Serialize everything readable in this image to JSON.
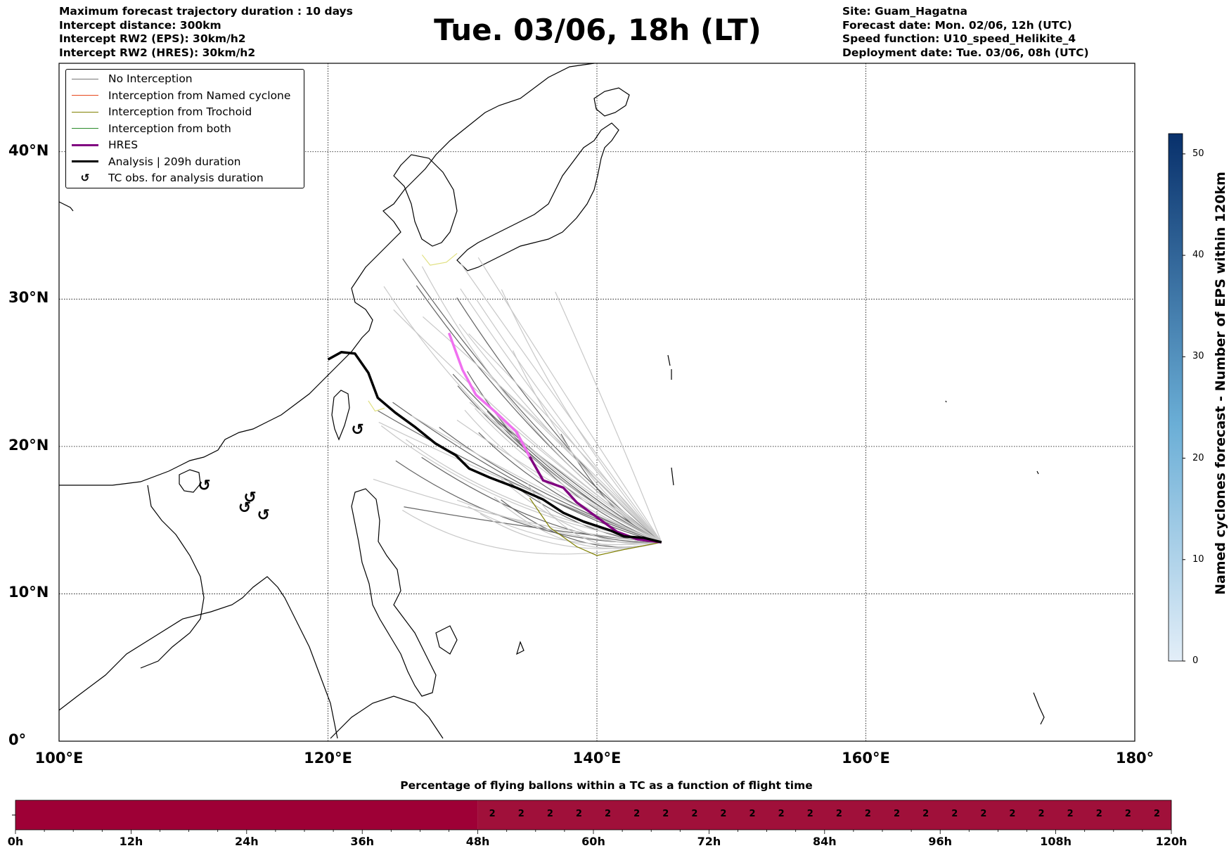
{
  "info_left": [
    "Maximum forecast trajectory duration : 10 days",
    "Intercept distance: 300km",
    "Intercept RW2 (EPS):  30km/h2",
    "Intercept RW2 (HRES): 30km/h2"
  ],
  "title": "Tue. 03/06, 18h (LT)",
  "info_right": [
    "Site: Guam_Hagatna",
    "Forecast date: Mon. 02/06, 12h (UTC)",
    "Speed function: U10_speed_Helikite_4",
    "Deployment date: Tue. 03/06, 08h (UTC)"
  ],
  "map": {
    "lon_ticks": [
      "100°E",
      "120°E",
      "140°E",
      "160°E",
      "180°"
    ],
    "lat_ticks": [
      "0°",
      "10°N",
      "20°N",
      "30°N",
      "40°N"
    ],
    "lon_range": [
      100,
      180
    ],
    "lat_range": [
      0,
      46
    ],
    "site": {
      "lon": 144.8,
      "lat": 13.5
    },
    "hres_track": [
      [
        129,
        27.7
      ],
      [
        130,
        25.2
      ],
      [
        131,
        23.5
      ],
      [
        132.5,
        22.3
      ],
      [
        134,
        21.0
      ],
      [
        135,
        19.3
      ],
      [
        136,
        17.7
      ],
      [
        137.5,
        17.2
      ],
      [
        138.5,
        16.2
      ],
      [
        140,
        15.2
      ],
      [
        141.5,
        14.2
      ],
      [
        143,
        13.7
      ],
      [
        144.8,
        13.5
      ]
    ],
    "analysis_track": [
      [
        120,
        25.9
      ],
      [
        121,
        26.4
      ],
      [
        122,
        26.3
      ],
      [
        123,
        25.0
      ],
      [
        123.7,
        23.3
      ],
      [
        125,
        22.3
      ],
      [
        126.5,
        21.3
      ],
      [
        128,
        20.2
      ],
      [
        129.5,
        19.4
      ],
      [
        130.5,
        18.5
      ],
      [
        132,
        17.9
      ],
      [
        134,
        17.2
      ],
      [
        136,
        16.4
      ],
      [
        137.5,
        15.5
      ],
      [
        139,
        14.9
      ],
      [
        141,
        14.3
      ],
      [
        142,
        13.9
      ],
      [
        143.5,
        13.8
      ],
      [
        144.8,
        13.5
      ]
    ],
    "tc_obs": [
      {
        "lon": 110.8,
        "lat": 17.0
      },
      {
        "lon": 114.2,
        "lat": 16.2
      },
      {
        "lon": 113.8,
        "lat": 15.5
      },
      {
        "lon": 115.2,
        "lat": 15.0
      },
      {
        "lon": 122.2,
        "lat": 20.8
      }
    ],
    "glyph_tc": "↺"
  },
  "legend": [
    {
      "label": "No Interception",
      "color": "#777777",
      "width": 1.2
    },
    {
      "label": "Interception from Named cyclone",
      "color": "#e8481c",
      "width": 1.2
    },
    {
      "label": "Interception from Trochoid",
      "color": "#808000",
      "width": 1.2
    },
    {
      "label": "Interception from both",
      "color": "#2a8a2a",
      "width": 1.2
    },
    {
      "label": "HRES",
      "color": "#800080",
      "width": 3.5
    },
    {
      "label": "Analysis | 209h duration",
      "color": "#000000",
      "width": 3.5
    },
    {
      "label": "TC obs. for analysis duration",
      "color": "#000000",
      "width": 0
    }
  ],
  "colorbar": {
    "label": "Named cyclones forecast - Number of EPS within 120km",
    "ticks": [
      "0",
      "10",
      "20",
      "30",
      "40",
      "50"
    ],
    "min": 0,
    "max": 52,
    "color_low": "#e3eef8",
    "color_high": "#08306b"
  },
  "timeline": {
    "title": "Percentage of flying ballons within a TC as a function of flight time",
    "ticks": [
      "0h",
      "12h",
      "24h",
      "36h",
      "48h",
      "60h",
      "72h",
      "84h",
      "96h",
      "108h",
      "120h"
    ],
    "max_hours": 120,
    "first_segment_hours": 48,
    "color_first": "#9e0036",
    "color_second": "#a0103a",
    "cell_value": "2",
    "cell_count": 24
  }
}
